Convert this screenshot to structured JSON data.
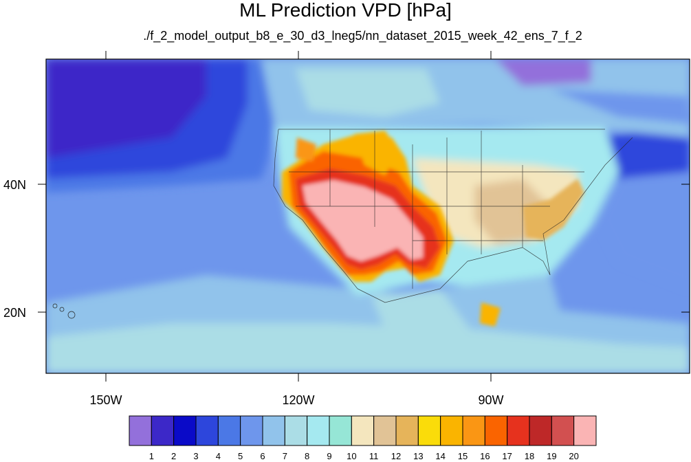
{
  "title": "ML Prediction VPD [hPa]",
  "subtitle": "./f_2_model_output_b8_e_30_d3_lneg5/nn_dataset_2015_week_42_ens_7_f_2",
  "axes": {
    "x_ticks": [
      "150W",
      "120W",
      "90W"
    ],
    "y_ticks": [
      "40N",
      "20N"
    ]
  },
  "colorbar": {
    "labels": [
      "1",
      "2",
      "3",
      "4",
      "5",
      "6",
      "7",
      "8",
      "9",
      "10",
      "11",
      "12",
      "13",
      "14",
      "15",
      "16",
      "17",
      "18",
      "19",
      "20"
    ],
    "colors": [
      "#9370db",
      "#3c28c8",
      "#0a0ac8",
      "#2d46dc",
      "#4b78e6",
      "#6e96ec",
      "#91c3eb",
      "#abdde6",
      "#a5e9f0",
      "#96e6d6",
      "#f4e6be",
      "#e1c396",
      "#e6b45a",
      "#fadc0a",
      "#fab400",
      "#fa9614",
      "#fa6400",
      "#e6321e",
      "#be2828",
      "#d25050",
      "#fab4b4"
    ]
  }
}
